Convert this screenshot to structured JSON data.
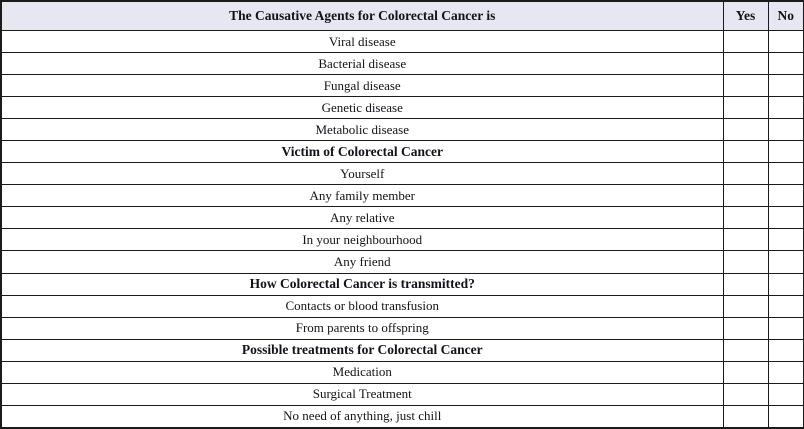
{
  "table": {
    "header": {
      "question": "The Causative Agents for Colorectal Cancer is",
      "yes": "Yes",
      "no": "No"
    },
    "rows": [
      {
        "label": "Viral disease",
        "bold": false
      },
      {
        "label": "Bacterial disease",
        "bold": false
      },
      {
        "label": "Fungal disease",
        "bold": false
      },
      {
        "label": "Genetic disease",
        "bold": false
      },
      {
        "label": "Metabolic disease",
        "bold": false
      },
      {
        "label": "Victim of Colorectal Cancer",
        "bold": true
      },
      {
        "label": "Yourself",
        "bold": false
      },
      {
        "label": "Any family member",
        "bold": false
      },
      {
        "label": "Any relative",
        "bold": false
      },
      {
        "label": "In your neighbourhood",
        "bold": false
      },
      {
        "label": "Any friend",
        "bold": false
      },
      {
        "label": "How Colorectal Cancer is transmitted?",
        "bold": true
      },
      {
        "label": "Contacts or blood transfusion",
        "bold": false
      },
      {
        "label": "From parents to offspring",
        "bold": false
      },
      {
        "label": "Possible treatments for Colorectal Cancer",
        "bold": true
      },
      {
        "label": "Medication",
        "bold": false
      },
      {
        "label": "Surgical Treatment",
        "bold": false
      },
      {
        "label": "No need of anything, just chill",
        "bold": false
      }
    ]
  },
  "colors": {
    "header_bg": "#e7e7f1",
    "border": "#1b1b1b",
    "text": "#12121a"
  }
}
